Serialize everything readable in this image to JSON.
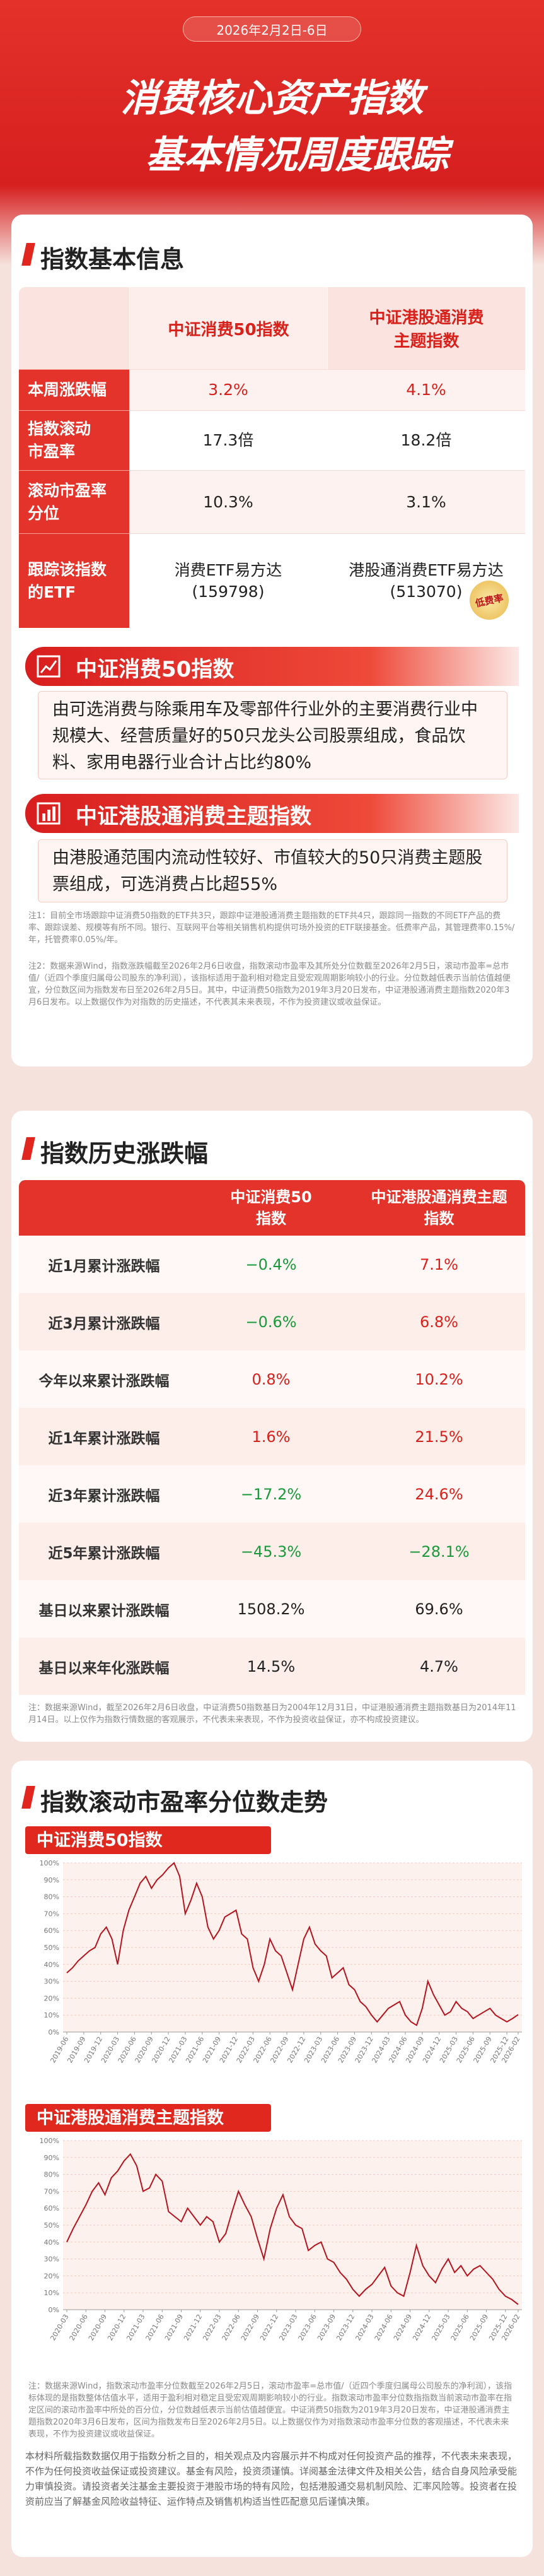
{
  "header": {
    "date": "2026年2月2日-6日",
    "title_line1": "消费核心资产指数",
    "title_line2": "基本情况周度跟踪"
  },
  "basic_info": {
    "title": "指数基本信息",
    "columns": [
      "中证消费50指数",
      "中证港股通消费\n主题指数"
    ],
    "rows": [
      {
        "label": "本周涨跌幅",
        "cells": [
          "3.2%",
          "4.1%"
        ],
        "color": "#d9211c"
      },
      {
        "label": "指数滚动\n市盈率",
        "cells": [
          "17.3倍",
          "18.2倍"
        ],
        "color": "#222222"
      },
      {
        "label": "滚动市盈率\n分位",
        "cells": [
          "10.3%",
          "3.1%"
        ],
        "color": "#222222"
      },
      {
        "label": "跟踪该指数\n的ETF",
        "cells": [
          "消费ETF易方达\n(159798)",
          "港股通消费ETF易方达\n(513070)"
        ],
        "color": "#222222"
      }
    ],
    "badge": "低费率"
  },
  "index_desc": [
    {
      "name": "中证消费50指数",
      "text": "由可选消费与除乘用车及零部件行业外的主要消费行业中规模大、经营质量好的50只龙头公司股票组成，食品饮料、家用电器行业合计占比约80%"
    },
    {
      "name": "中证港股通消费主题指数",
      "text": "由港股通范围内流动性较好、市值较大的50只消费主题股票组成，可选消费占比超55%"
    }
  ],
  "notes_basic": [
    "注1：目前全市场跟踪中证消费50指数的ETF共3只，跟踪中证港股通消费主题指数的ETF共4只，跟踪同一指数的不同ETF产品的费率、跟踪误差、规模等有所不同。银行、互联网平台等相关销售机构提供可场外投资的ETF联接基金。低费率产品，其管理费率0.15%/年，托管费率0.05%/年。",
    "注2：数据来源Wind，指数涨跌幅截至2026年2月6日收盘，指数滚动市盈率及其所处分位数截至2026年2月5日，滚动市盈率=总市值/（近四个季度归属母公司股东的净利润），该指标适用于盈利相对稳定且受宏观周期影响较小的行业。分位数越低表示当前估值越便宜，分位数区间为指数发布日至2026年2月5日。其中，中证消费50指数为2019年3月20日发布，中证港股通消费主题指数2020年3月6日发布。以上数据仅作为对指数的历史描述，不代表其未来表现，不作为投资建议或收益保证。"
  ],
  "history": {
    "title": "指数历史涨跌幅",
    "columns": [
      "中证消费50\n指数",
      "中证港股通消费主题\n指数"
    ],
    "rows": [
      {
        "label": "近1月累计涨跌幅",
        "cells": [
          "−0.4%",
          "7.1%"
        ],
        "colored": true
      },
      {
        "label": "近3月累计涨跌幅",
        "cells": [
          "−0.6%",
          "6.8%"
        ],
        "colored": true
      },
      {
        "label": "今年以来累计涨跌幅",
        "cells": [
          "0.8%",
          "10.2%"
        ],
        "colored": true
      },
      {
        "label": "近1年累计涨跌幅",
        "cells": [
          "1.6%",
          "21.5%"
        ],
        "colored": true
      },
      {
        "label": "近3年累计涨跌幅",
        "cells": [
          "−17.2%",
          "24.6%"
        ],
        "colored": true
      },
      {
        "label": "近5年累计涨跌幅",
        "cells": [
          "−45.3%",
          "−28.1%"
        ],
        "colored": true
      },
      {
        "label": "基日以来累计涨跌幅",
        "cells": [
          "1508.2%",
          "69.6%"
        ],
        "colored": false
      },
      {
        "label": "基日以来年化涨跌幅",
        "cells": [
          "14.5%",
          "4.7%"
        ],
        "colored": false
      }
    ],
    "note": "注：数据来源Wind，截至2026年2月6日收盘，中证消费50指数基日为2004年12月31日，中证港股通消费主题指数基日为2014年11月14日。以上仅作为指数行情数据的客观展示，不代表未来表现，不作为投资收益保证，亦不构成投资建议。"
  },
  "pe_section": {
    "title": "指数滚动市盈率分位数走势",
    "note": "注：数据来源Wind，指数滚动市盈率分位数截至2026年2月5日，滚动市盈率=总市值/（近四个季度归属母公司股东的净利润），该指标体现的是指数整体估值水平，适用于盈利相对稳定且受宏观周期影响较小的行业。指数滚动市盈率分位数指指数当前滚动市盈率在指定区间的滚动市盈率中所处的百分位，分位数越低表示当前估值越便宜。中证消费50指数为2019年3月20日发布，中证港股通消费主题指数2020年3月6日发布，区间为指数发布日至2026年2月5日。以上数据仅作为对指数滚动市盈率分位数的客观描述，不代表未来表现，不作为投资建议或收益保证。"
  },
  "chart_data": [
    {
      "type": "line",
      "title": "中证消费50指数",
      "x": [
        "2019-06",
        "2019-07",
        "2019-08",
        "2019-09",
        "2019-10",
        "2019-11",
        "2019-12",
        "2020-01",
        "2020-02",
        "2020-03",
        "2020-04",
        "2020-05",
        "2020-06",
        "2020-07",
        "2020-08",
        "2020-09",
        "2020-10",
        "2020-11",
        "2020-12",
        "2021-01",
        "2021-02",
        "2021-03",
        "2021-04",
        "2021-05",
        "2021-06",
        "2021-07",
        "2021-08",
        "2021-09",
        "2021-10",
        "2021-11",
        "2021-12",
        "2022-01",
        "2022-02",
        "2022-03",
        "2022-04",
        "2022-05",
        "2022-06",
        "2022-07",
        "2022-08",
        "2022-09",
        "2022-10",
        "2022-11",
        "2022-12",
        "2023-01",
        "2023-02",
        "2023-03",
        "2023-04",
        "2023-05",
        "2023-06",
        "2023-07",
        "2023-08",
        "2023-09",
        "2023-10",
        "2023-11",
        "2023-12",
        "2024-01",
        "2024-02",
        "2024-03",
        "2024-04",
        "2024-05",
        "2024-06",
        "2024-07",
        "2024-08",
        "2024-09",
        "2024-10",
        "2024-11",
        "2024-12",
        "2025-01",
        "2025-02",
        "2025-03",
        "2025-04",
        "2025-05",
        "2025-06",
        "2025-07",
        "2025-08",
        "2025-09",
        "2025-10",
        "2025-11",
        "2025-12",
        "2026-01",
        "2026-02"
      ],
      "xticks": [
        "2019-06",
        "2019-09",
        "2019-12",
        "2020-03",
        "2020-06",
        "2020-09",
        "2020-12",
        "2021-03",
        "2021-06",
        "2021-09",
        "2021-12",
        "2022-03",
        "2022-06",
        "2022-09",
        "2022-12",
        "2023-03",
        "2023-06",
        "2023-09",
        "2023-12",
        "2024-03",
        "2024-06",
        "2024-09",
        "2024-12",
        "2025-03",
        "2025-06",
        "2025-09",
        "2025-12",
        "2026-02"
      ],
      "series": [
        {
          "color": "#b5131d",
          "values": [
            35,
            38,
            42,
            45,
            48,
            50,
            58,
            62,
            55,
            40,
            60,
            72,
            80,
            88,
            92,
            85,
            90,
            93,
            97,
            100,
            92,
            70,
            78,
            88,
            80,
            62,
            55,
            60,
            68,
            70,
            72,
            58,
            55,
            38,
            30,
            40,
            55,
            48,
            45,
            35,
            25,
            40,
            55,
            62,
            52,
            48,
            45,
            32,
            35,
            38,
            28,
            25,
            18,
            15,
            10,
            6,
            10,
            14,
            16,
            18,
            10,
            6,
            4,
            14,
            30,
            22,
            16,
            10,
            12,
            18,
            14,
            12,
            8,
            10,
            12,
            14,
            10,
            8,
            6,
            8,
            10.3
          ]
        }
      ],
      "ylim": [
        0,
        100
      ],
      "yticks": [
        {
          "value": 0,
          "label": "0%"
        },
        {
          "value": 10,
          "label": "10%"
        },
        {
          "value": 20,
          "label": "20%"
        },
        {
          "value": 30,
          "label": "30%"
        },
        {
          "value": 40,
          "label": "40%"
        },
        {
          "value": 50,
          "label": "50%"
        },
        {
          "value": 60,
          "label": "60%"
        },
        {
          "value": 70,
          "label": "70%"
        },
        {
          "value": 80,
          "label": "80%"
        },
        {
          "value": 90,
          "label": "90%"
        },
        {
          "value": 100,
          "label": "100%"
        }
      ],
      "grid": true
    },
    {
      "type": "line",
      "title": "中证港股通消费主题指数",
      "x": [
        "2020-03",
        "2020-04",
        "2020-05",
        "2020-06",
        "2020-07",
        "2020-08",
        "2020-09",
        "2020-10",
        "2020-11",
        "2020-12",
        "2021-01",
        "2021-02",
        "2021-03",
        "2021-04",
        "2021-05",
        "2021-06",
        "2021-07",
        "2021-08",
        "2021-09",
        "2021-10",
        "2021-11",
        "2021-12",
        "2022-01",
        "2022-02",
        "2022-03",
        "2022-04",
        "2022-05",
        "2022-06",
        "2022-07",
        "2022-08",
        "2022-09",
        "2022-10",
        "2022-11",
        "2022-12",
        "2023-01",
        "2023-02",
        "2023-03",
        "2023-04",
        "2023-05",
        "2023-06",
        "2023-07",
        "2023-08",
        "2023-09",
        "2023-10",
        "2023-11",
        "2023-12",
        "2024-01",
        "2024-02",
        "2024-03",
        "2024-04",
        "2024-05",
        "2024-06",
        "2024-07",
        "2024-08",
        "2024-09",
        "2024-10",
        "2024-11",
        "2024-12",
        "2025-01",
        "2025-02",
        "2025-03",
        "2025-04",
        "2025-05",
        "2025-06",
        "2025-07",
        "2025-08",
        "2025-09",
        "2025-10",
        "2025-11",
        "2025-12",
        "2026-01",
        "2026-02"
      ],
      "xticks": [
        "2020-03",
        "2020-06",
        "2020-09",
        "2020-12",
        "2021-03",
        "2021-06",
        "2021-09",
        "2021-12",
        "2022-03",
        "2022-06",
        "2022-09",
        "2022-12",
        "2023-03",
        "2023-06",
        "2023-09",
        "2023-12",
        "2024-03",
        "2024-06",
        "2024-09",
        "2024-12",
        "2025-03",
        "2025-06",
        "2025-09",
        "2025-12",
        "2026-02"
      ],
      "series": [
        {
          "color": "#b5131d",
          "values": [
            40,
            48,
            55,
            62,
            70,
            75,
            68,
            78,
            82,
            88,
            92,
            85,
            70,
            72,
            80,
            76,
            58,
            55,
            52,
            60,
            55,
            50,
            55,
            52,
            40,
            45,
            58,
            70,
            62,
            55,
            42,
            30,
            48,
            60,
            68,
            55,
            50,
            48,
            35,
            38,
            40,
            30,
            28,
            22,
            18,
            12,
            8,
            12,
            15,
            20,
            25,
            14,
            10,
            8,
            22,
            38,
            26,
            20,
            16,
            24,
            30,
            22,
            26,
            20,
            24,
            26,
            22,
            18,
            12,
            8,
            6,
            3.1
          ]
        }
      ],
      "ylim": [
        0,
        100
      ],
      "yticks": [
        {
          "value": 0,
          "label": "0%"
        },
        {
          "value": 10,
          "label": "10%"
        },
        {
          "value": 20,
          "label": "20%"
        },
        {
          "value": 30,
          "label": "30%"
        },
        {
          "value": 40,
          "label": "40%"
        },
        {
          "value": 50,
          "label": "50%"
        },
        {
          "value": 60,
          "label": "60%"
        },
        {
          "value": 70,
          "label": "70%"
        },
        {
          "value": 80,
          "label": "80%"
        },
        {
          "value": 90,
          "label": "90%"
        },
        {
          "value": 100,
          "label": "100%"
        }
      ],
      "grid": true
    }
  ],
  "disclaimer": "本材料所载指数数据仅用于指数分析之目的，相关观点及内容展示并不构成对任何投资产品的推荐，不代表未来表现，不作为任何投资收益保证或投资建议。基金有风险，投资须谨慎。详阅基金法律文件及相关公告，结合自身风险承受能力审慎投资。请投资者关注基金主要投资于港股市场的特有风险，包括港股通交易机制风险、汇率风险等。投资者在投资前应当了解基金风险收益特征、运作特点及销售机构适当性匹配意见后谨慎决策。"
}
